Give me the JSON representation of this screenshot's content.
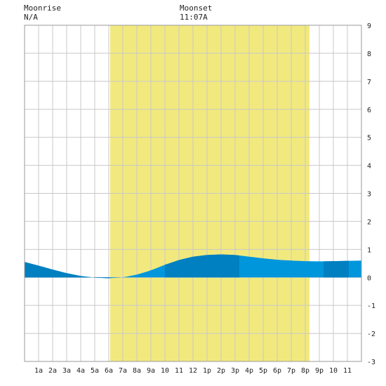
{
  "header": {
    "moonrise_label": "Moonrise",
    "moonrise_value": "N/A",
    "moonset_label": "Moonset",
    "moonset_value": "11:07A"
  },
  "chart_data": {
    "type": "area",
    "x_tick_labels": [
      "1a",
      "2a",
      "3a",
      "4a",
      "5a",
      "6a",
      "7a",
      "8a",
      "9a",
      "10",
      "11",
      "12",
      "1p",
      "2p",
      "3p",
      "4p",
      "5p",
      "6p",
      "7p",
      "8p",
      "9p",
      "10",
      "11"
    ],
    "y_ticks": [
      -3,
      -2,
      -1,
      0,
      1,
      2,
      3,
      4,
      5,
      6,
      7,
      8,
      9
    ],
    "xlim": [
      0,
      24
    ],
    "ylim": [
      -3,
      9
    ],
    "grid": true,
    "daylight": {
      "start_hour": 6.1,
      "end_hour": 20.3,
      "color": "#f2e97e"
    },
    "colors": {
      "light": "#0096dc",
      "dark": "#0080c0"
    },
    "series": {
      "hours": [
        0,
        1,
        2,
        3,
        4,
        5,
        6,
        7,
        8,
        9,
        10,
        11,
        12,
        13,
        14,
        15,
        16,
        17,
        18,
        19,
        20,
        21,
        22,
        23,
        24
      ],
      "heights": [
        0.55,
        0.42,
        0.28,
        0.15,
        0.05,
        -0.01,
        -0.03,
        0.0,
        0.1,
        0.25,
        0.45,
        0.62,
        0.74,
        0.8,
        0.82,
        0.8,
        0.74,
        0.68,
        0.63,
        0.6,
        0.58,
        0.57,
        0.58,
        0.59,
        0.6
      ]
    },
    "shaded_bands": [
      [
        0,
        6.1
      ],
      [
        10,
        15.3
      ],
      [
        21.3,
        23.1
      ]
    ]
  }
}
